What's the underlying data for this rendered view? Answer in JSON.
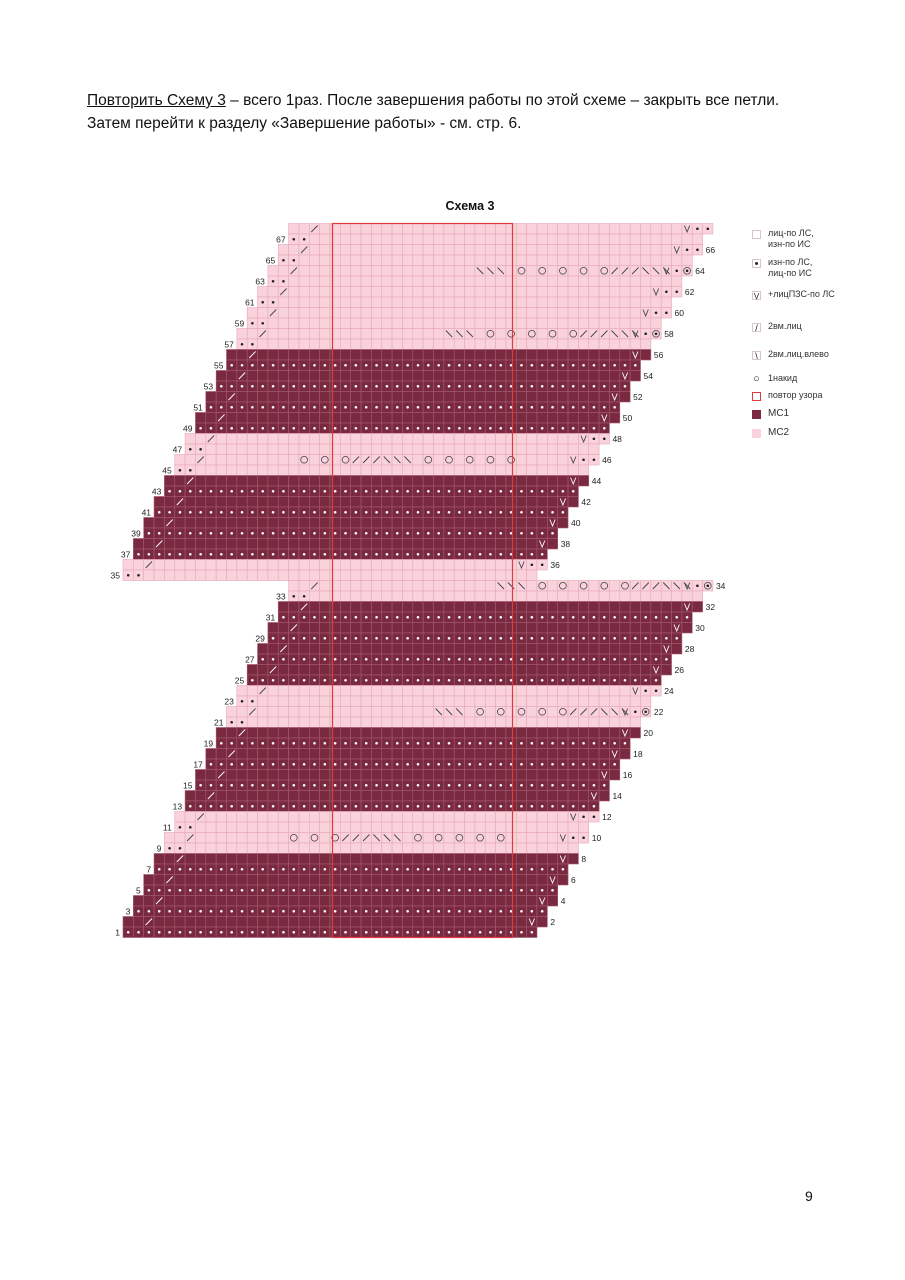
{
  "intro": {
    "link_text": "Повторить Схему 3",
    "line1_rest": " – всего 1раз. После завершения работы по этой схеме – закрыть все петли.",
    "line2": "Затем перейти к разделу «Завершение работы» - см. стр. 6."
  },
  "chart": {
    "title": "Схема 3",
    "colors": {
      "mc1": "#7a2a40",
      "mc2": "#f9d2dc",
      "grid": "#e7a9b8",
      "repeat": "#e23a3a"
    },
    "left_row_numbers": [
      "67",
      "65",
      "63",
      "61",
      "59",
      "57",
      "55",
      "53",
      "51",
      "49",
      "47",
      "45",
      "43",
      "41",
      "39",
      "37",
      "35",
      "33",
      "31",
      "29",
      "27",
      "25",
      "23",
      "21",
      "19",
      "17",
      "15",
      "13",
      "11",
      "9",
      "7",
      "5",
      "3",
      "1"
    ],
    "right_row_numbers": [
      "66",
      "64",
      "62",
      "60",
      "58",
      "56",
      "54",
      "52",
      "50",
      "48",
      "46",
      "44",
      "42",
      "40",
      "38",
      "36",
      "34",
      "32",
      "30",
      "28",
      "26",
      "24",
      "22",
      "20",
      "18",
      "16",
      "14",
      "12",
      "10",
      "8",
      "6",
      "4",
      "2"
    ]
  },
  "legend": [
    {
      "icon": "blank-cell-icon",
      "symbol": "",
      "label_lines": [
        "лиц-по ЛС,",
        "изн-по ИС"
      ]
    },
    {
      "icon": "purl-dot-icon",
      "symbol": "•",
      "label_lines": [
        "изн-по ЛС,",
        "лиц-по ИС"
      ]
    },
    {
      "icon": "increase-v-icon",
      "symbol": "V",
      "label_lines": [
        "+лицПЗС-по ЛС"
      ]
    },
    {
      "icon": "k2tog-slash-icon",
      "symbol": "/",
      "label_lines": [
        "2вм.лиц"
      ]
    },
    {
      "icon": "ssk-backslash-icon",
      "symbol": "\\",
      "label_lines": [
        "2вм.лиц.влево"
      ]
    },
    {
      "icon": "yarn-over-circle-icon",
      "symbol": "○",
      "label_lines": [
        "1накид"
      ]
    },
    {
      "icon": "repeat-box-icon",
      "symbol": "",
      "label_lines": [
        "повтор узора"
      ]
    },
    {
      "icon": "mc1-swatch-icon",
      "symbol": "",
      "label_lines": [
        "МС1"
      ]
    },
    {
      "icon": "mc2-swatch-icon",
      "symbol": "",
      "label_lines": [
        "МС2"
      ]
    }
  ],
  "page_number": "9"
}
